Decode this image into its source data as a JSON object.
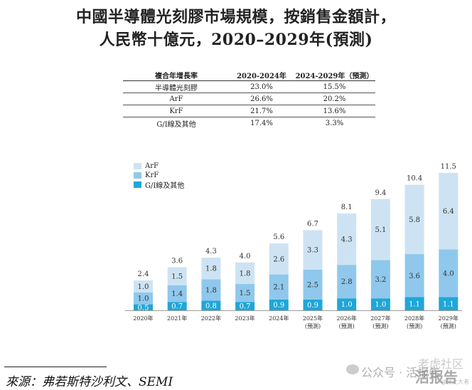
{
  "title_line1": "中國半導體光刻膠市場規模，按銷售金額計，",
  "title_line2": "人民幣十億元，2020–2029年(預測)",
  "table": {
    "headers": [
      "複合年增長率",
      "2020-2024年",
      "2024-2029年（預測）"
    ],
    "rows": [
      {
        "label": "半導體光刻膠",
        "a": "23.0%",
        "b": "15.5%"
      },
      {
        "label": "ArF",
        "a": "26.6%",
        "b": "20.2%"
      },
      {
        "label": "KrF",
        "a": "21.7%",
        "b": "13.6%"
      },
      {
        "label": "G/I線及其他",
        "a": "17.4%",
        "b": "3.3%"
      }
    ]
  },
  "chart_data": {
    "type": "bar",
    "stacked": true,
    "categories": [
      "2020年",
      "2021年",
      "2022年",
      "2023年",
      "2024年",
      "2025年",
      "2026年",
      "2027年",
      "2028年",
      "2029年"
    ],
    "category_sublabels": [
      "",
      "",
      "",
      "",
      "",
      "(預測)",
      "(預測)",
      "(預測)",
      "(預測)",
      "(預測)"
    ],
    "series": [
      {
        "name": "G/I線及其他",
        "color": "#1ea7d8",
        "values": [
          0.5,
          0.7,
          0.8,
          0.7,
          0.9,
          0.9,
          1.0,
          1.0,
          1.1,
          1.1
        ]
      },
      {
        "name": "KrF",
        "color": "#8fc8ec",
        "values": [
          1.0,
          1.4,
          1.8,
          1.5,
          2.1,
          2.5,
          2.8,
          3.2,
          3.6,
          4.0
        ]
      },
      {
        "name": "ArF",
        "color": "#cde3f3",
        "values": [
          1.0,
          1.5,
          1.8,
          1.8,
          2.6,
          3.3,
          4.3,
          5.1,
          5.8,
          6.4
        ]
      }
    ],
    "totals": [
      2.4,
      3.6,
      4.3,
      4.0,
      5.6,
      6.7,
      8.1,
      9.4,
      10.4,
      11.5
    ],
    "legend_order": [
      "ArF",
      "KrF",
      "G/I線及其他"
    ],
    "legend_position": "top-left",
    "grid": false
  },
  "source_text": "來源：弗若斯特沙利文、SEMI",
  "watermark": {
    "wechat": "公众号 · 活报告",
    "site": "老虎社区",
    "tag": "活报告",
    "small": "@侯之大者"
  }
}
